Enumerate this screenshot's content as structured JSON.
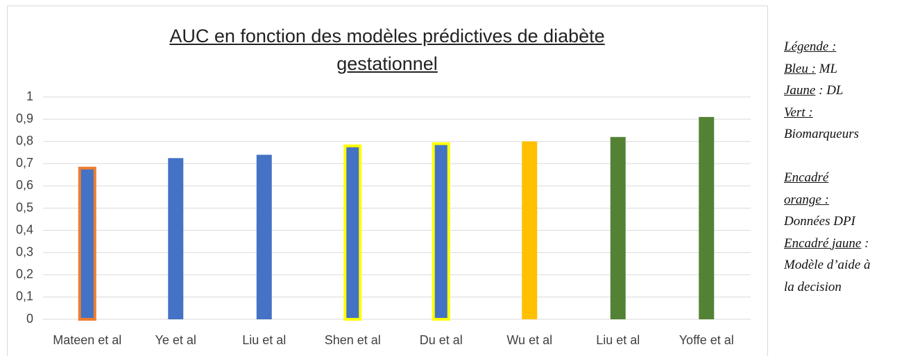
{
  "chart_data": {
    "type": "bar",
    "title": "AUC en fonction des modèles prédictives de diabète gestationnel",
    "categories": [
      "Mateen et al",
      "Ye et al",
      "Liu et al",
      "Shen et al",
      "Du et al",
      "Wu et al",
      "Liu et al",
      "Yoffe et al"
    ],
    "values": [
      0.68,
      0.725,
      0.74,
      0.78,
      0.79,
      0.8,
      0.82,
      0.91
    ],
    "colors": [
      "#4472c4",
      "#4472c4",
      "#4472c4",
      "#4472c4",
      "#4472c4",
      "#ffc000",
      "#548235",
      "#548235"
    ],
    "outline_colors": [
      "#ed7d31",
      null,
      null,
      "#ffff00",
      "#ffff00",
      null,
      null,
      null
    ],
    "ylim": [
      0,
      1
    ],
    "yticks": [
      0,
      {
        "value": 0.1,
        "label": "0,1"
      },
      {
        "value": 0.2,
        "label": "0,2"
      },
      {
        "value": 0.3,
        "label": "0,3"
      },
      {
        "value": 0.4,
        "label": "0,4"
      },
      {
        "value": 0.5,
        "label": "0,5"
      },
      {
        "value": 0.6,
        "label": "0,6"
      },
      {
        "value": 0.7,
        "label": "0,7"
      },
      {
        "value": 0.8,
        "label": "0,8"
      },
      {
        "value": 0.9,
        "label": "0,9"
      },
      1
    ],
    "grid": true,
    "side_note": [
      [
        [
          {
            "text": "Légende :",
            "underline": true
          }
        ],
        [
          {
            "text": "Bleu :",
            "underline": true
          },
          {
            "text": " ML",
            "underline": false
          }
        ],
        [
          {
            "text": "Jaune",
            "underline": true
          },
          {
            "text": " : DL",
            "underline": false
          }
        ],
        [
          {
            "text": "Vert :",
            "underline": true
          }
        ],
        [
          {
            "text": "Biomarqueurs",
            "underline": false
          }
        ]
      ],
      [
        [
          {
            "text": "Encadré",
            "underline": true
          }
        ],
        [
          {
            "text": "orange :",
            "underline": true
          }
        ],
        [
          {
            "text": "Données DPI",
            "underline": false
          }
        ],
        [
          {
            "text": "Encadré jaune",
            "underline": true
          },
          {
            "text": " :",
            "underline": false
          }
        ],
        [
          {
            "text": "Modèle d’aide à",
            "underline": false
          }
        ],
        [
          {
            "text": "la decision",
            "underline": false
          }
        ]
      ]
    ]
  }
}
